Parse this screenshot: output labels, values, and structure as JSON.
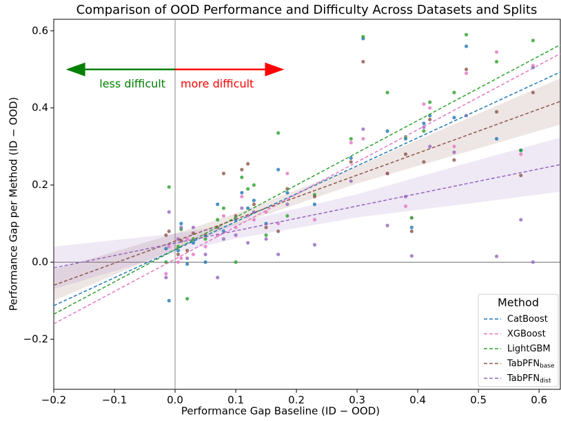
{
  "chart_data": {
    "type": "scatter",
    "title": "Comparison of OOD Performance and Difficulty Across Datasets and Splits",
    "xlabel": "Performance Gap Baseline (ID − OOD)",
    "ylabel": "Performance Gap per Method (ID − OOD)",
    "xlim": [
      -0.2,
      0.635
    ],
    "ylim": [
      -0.33,
      0.63
    ],
    "xticks": [
      {
        "value": -0.2,
        "label": "−0.2"
      },
      {
        "value": -0.1,
        "label": "−0.1"
      },
      {
        "value": 0,
        "label": "0.0"
      },
      0.1,
      0.2,
      0.3,
      0.4,
      0.5,
      0.6
    ],
    "yticks": [
      {
        "value": -0.2,
        "label": "−0.2"
      },
      {
        "value": 0,
        "label": "0.0"
      },
      0.2,
      0.4,
      0.6
    ],
    "x": [
      -0.01,
      -0.015,
      0.005,
      0.01,
      0.02,
      0.03,
      0.05,
      0.07,
      0.08,
      0.1,
      0.11,
      0.12,
      0.13,
      0.15,
      0.17,
      0.185,
      0.23,
      0.29,
      0.31,
      0.35,
      0.38,
      0.39,
      0.41,
      0.42,
      0.46,
      0.48,
      0.53,
      0.57,
      0.59
    ],
    "fit_x": [
      -0.2,
      0.635
    ],
    "band_x": [
      -0.2,
      0,
      0.1,
      0.3,
      0.5,
      0.635
    ],
    "series": [
      {
        "name": "CatBoost",
        "color": "#1f77b4",
        "values": [
          -0.1,
          0.035,
          0.03,
          0.1,
          -0.005,
          0.05,
          0.0,
          0.15,
          0.08,
          0.11,
          0.18,
          0.14,
          0.16,
          0.1,
          0.24,
          0.18,
          0.15,
          0.27,
          0.58,
          0.34,
          0.32,
          0.09,
          0.36,
          0.38,
          0.375,
          0.56,
          0.32,
          0.29,
          0.505
        ],
        "fit": [
          -0.113,
          0.493
        ]
      },
      {
        "name": "XGBoost",
        "color": "#e377c2",
        "values": [
          0.04,
          -0.03,
          0.0,
          0.01,
          0.06,
          0.02,
          0.04,
          0.07,
          0.12,
          0.09,
          0.17,
          0.12,
          0.11,
          0.13,
          0.1,
          0.23,
          0.11,
          0.31,
          0.32,
          0.23,
          0.145,
          0.115,
          0.41,
          0.4,
          0.3,
          0.49,
          0.545,
          0.28,
          0.51
        ],
        "fit": [
          -0.16,
          0.541
        ]
      },
      {
        "name": "LightGBM",
        "color": "#2ca02c",
        "values": [
          0.195,
          0.0,
          0.04,
          0.085,
          -0.095,
          0.06,
          0.06,
          0.11,
          0.14,
          0.0,
          0.22,
          0.19,
          0.2,
          0.07,
          0.335,
          0.12,
          0.175,
          0.32,
          0.585,
          0.44,
          0.325,
          0.115,
          0.34,
          0.415,
          0.44,
          0.59,
          0.52,
          0.29,
          0.575
        ],
        "fit": [
          -0.135,
          0.564
        ]
      },
      {
        "name": "TabPFN",
        "subscript": "base",
        "color": "#8c564b",
        "values": [
          0.08,
          0.07,
          0.02,
          0.055,
          0.03,
          0.075,
          0.07,
          0.09,
          0.23,
          0.12,
          0.24,
          0.255,
          0.15,
          0.09,
          0.08,
          0.19,
          0.17,
          0.26,
          0.52,
          0.23,
          0.28,
          0.08,
          0.26,
          0.37,
          0.265,
          0.5,
          0.39,
          0.225,
          0.44
        ],
        "fit": [
          -0.06,
          0.417
        ],
        "band_lower": [
          -0.1,
          0.034,
          0.096,
          0.204,
          0.295,
          0.357
        ],
        "band_upper": [
          -0.02,
          0.074,
          0.126,
          0.248,
          0.385,
          0.477
        ]
      },
      {
        "name": "TabPFN",
        "subscript": "dist",
        "color": "#9467bd",
        "values": [
          0.13,
          -0.04,
          0.06,
          0.09,
          0.01,
          0.09,
          0.02,
          -0.04,
          0.06,
          0.07,
          0.14,
          0.05,
          0.13,
          0.06,
          0.02,
          0.15,
          0.045,
          0.21,
          0.345,
          0.095,
          0.17,
          0.016,
          0.35,
          0.3,
          0.285,
          0.38,
          0.015,
          0.11,
          0.0
        ],
        "fit": [
          -0.015,
          0.253
        ],
        "band_lower": [
          -0.07,
          0.024,
          0.061,
          0.116,
          0.155,
          0.183
        ],
        "band_upper": [
          0.04,
          0.074,
          0.101,
          0.176,
          0.265,
          0.323
        ]
      }
    ],
    "annotations": [
      {
        "text": "less difficult",
        "color": "#008000",
        "x": [
          0,
          -0.18
        ],
        "y": 0.5
      },
      {
        "text": "more difficult",
        "color": "#ff0000",
        "x": [
          0,
          0.18
        ],
        "y": 0.5
      }
    ],
    "legend_title": "Method",
    "legend": "lower right"
  }
}
